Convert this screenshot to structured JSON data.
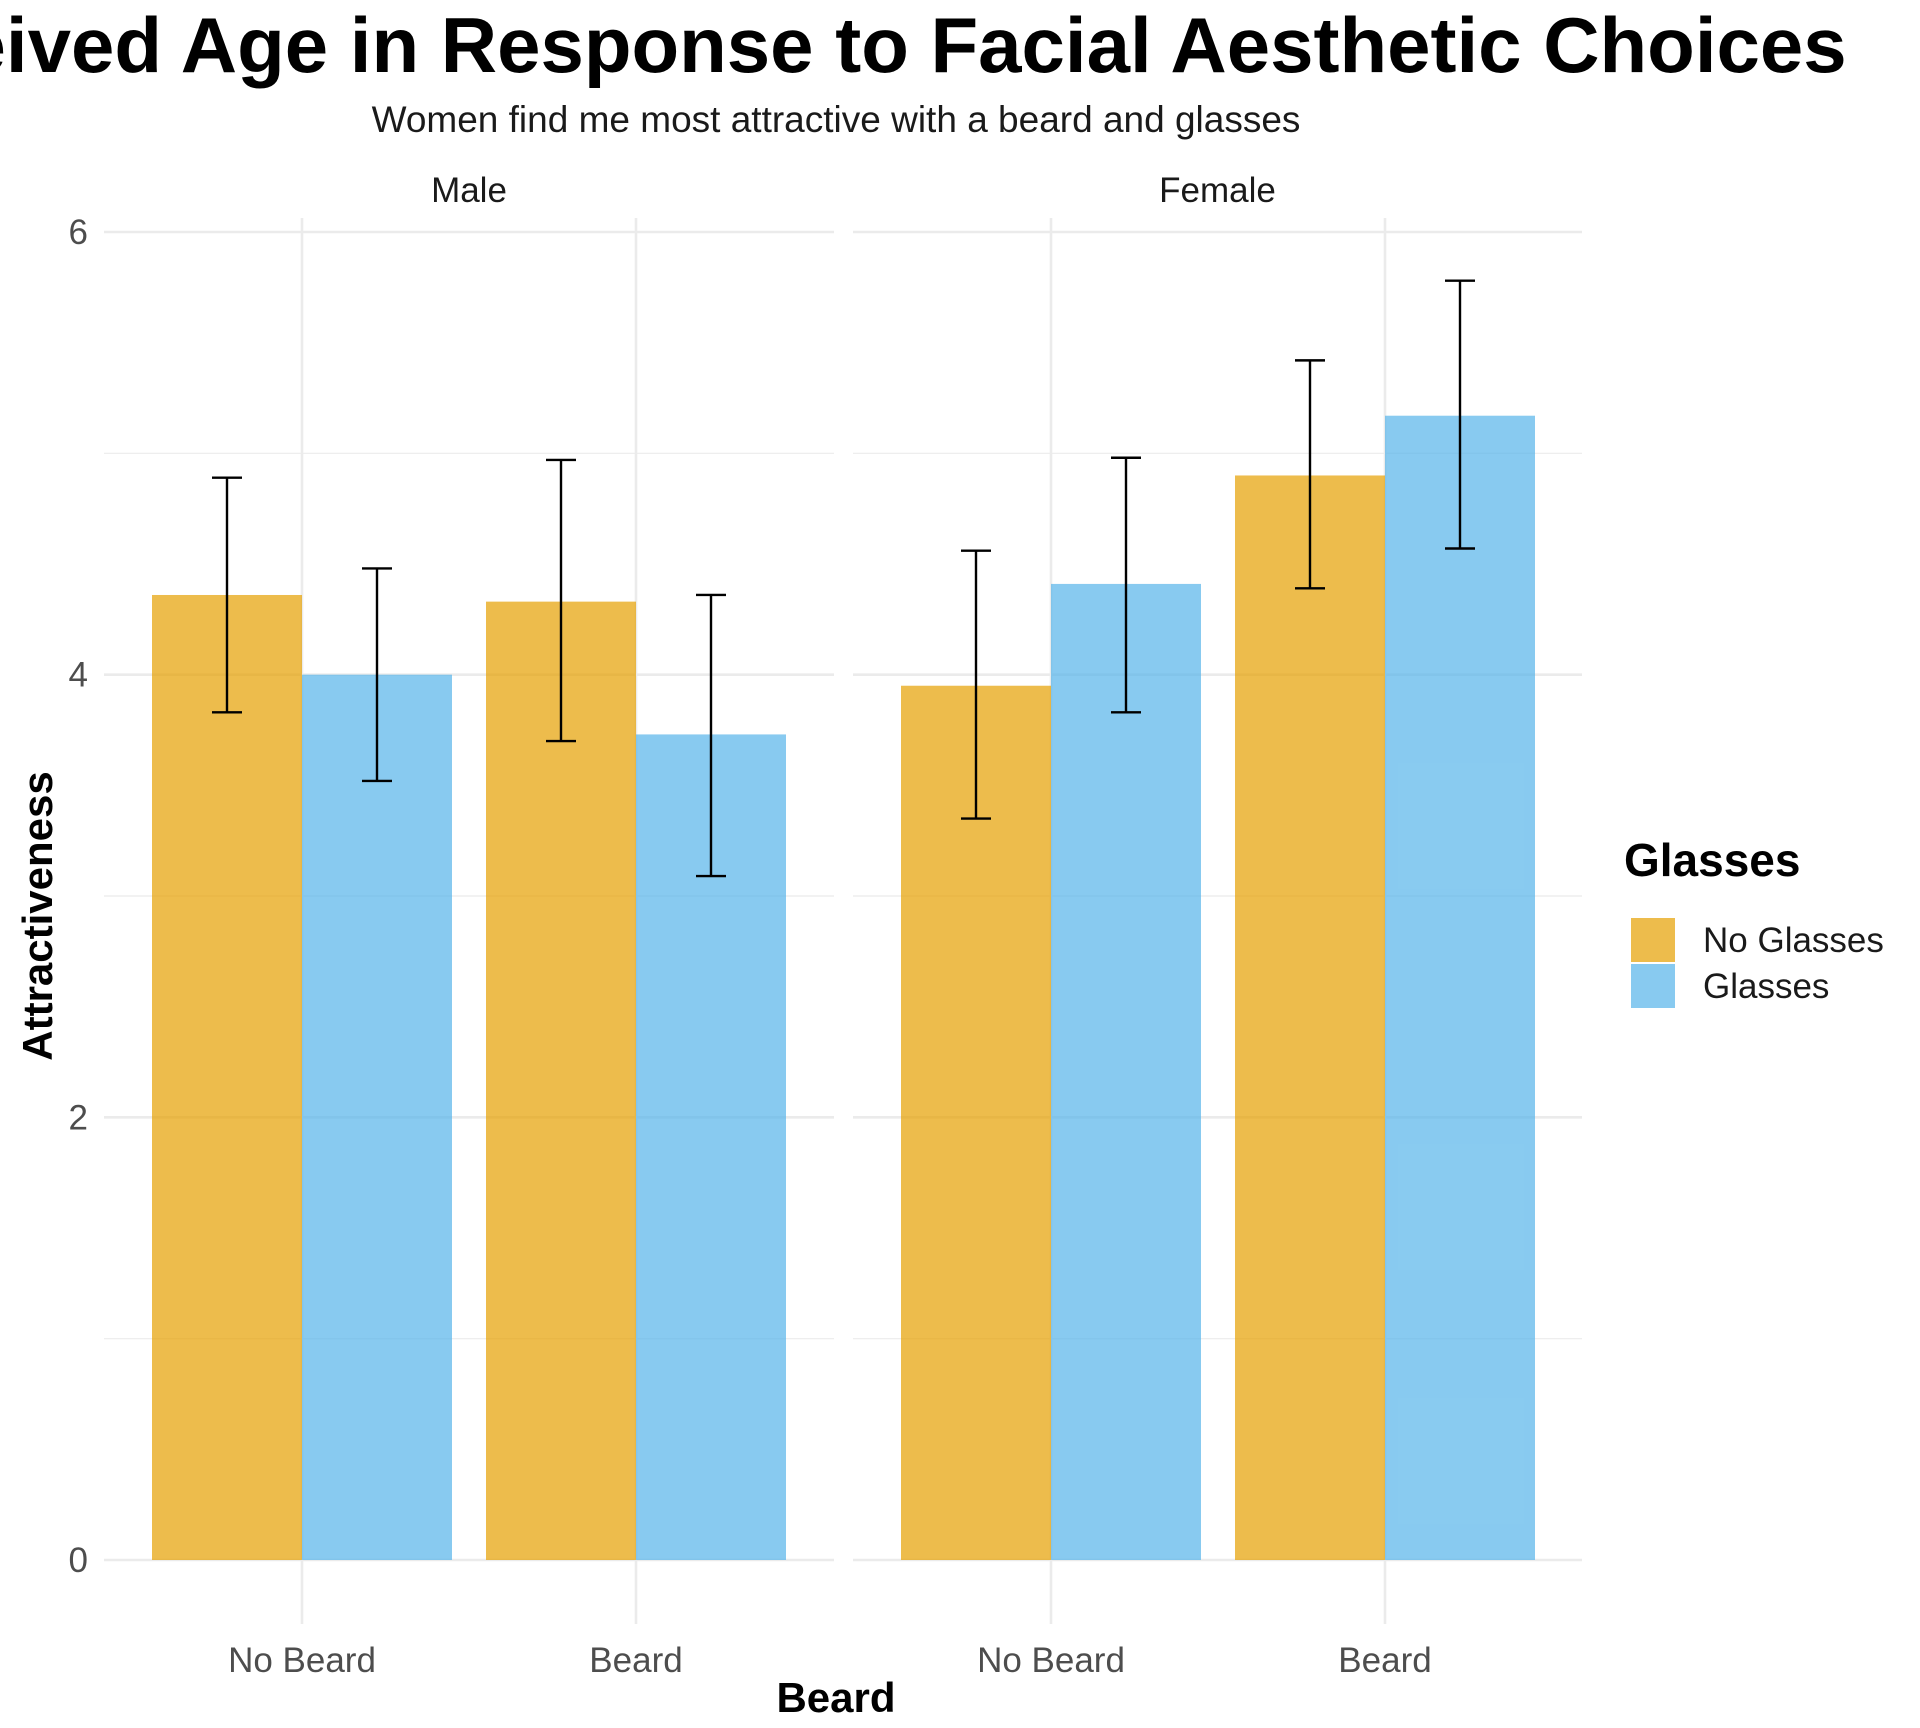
{
  "chart_data": {
    "type": "bar",
    "title": "Perceived Age in Response to Facial Aesthetic Choices",
    "subtitle": "Women find me most attractive with a beard and glasses",
    "xlabel": "Beard",
    "ylabel": "Attractiveness",
    "ylim": [
      0,
      6
    ],
    "yticks": [
      0,
      2,
      4,
      6
    ],
    "grid": true,
    "legend": {
      "title": "Glasses",
      "placement": "right"
    },
    "categories": [
      "No Beard",
      "Beard"
    ],
    "facets": [
      {
        "label": "Male",
        "series": [
          {
            "name": "No Glasses",
            "values": [
              4.36,
              4.33
            ],
            "error_low": [
              3.83,
              3.7
            ],
            "error_high": [
              4.89,
              4.97
            ]
          },
          {
            "name": "Glasses",
            "values": [
              4.0,
              3.73
            ],
            "error_low": [
              3.52,
              3.09
            ],
            "error_high": [
              4.48,
              4.36
            ]
          }
        ]
      },
      {
        "label": "Female",
        "series": [
          {
            "name": "No Glasses",
            "values": [
              3.95,
              4.9
            ],
            "error_low": [
              3.35,
              4.39
            ],
            "error_high": [
              4.56,
              5.42
            ]
          },
          {
            "name": "Glasses",
            "values": [
              4.41,
              5.17
            ],
            "error_low": [
              3.83,
              4.57
            ],
            "error_high": [
              4.98,
              5.78
            ]
          }
        ]
      }
    ],
    "colors": {
      "No Glasses": "#E69F00",
      "Glasses": "#56B4E9"
    },
    "bar_opacity": 0.7
  }
}
